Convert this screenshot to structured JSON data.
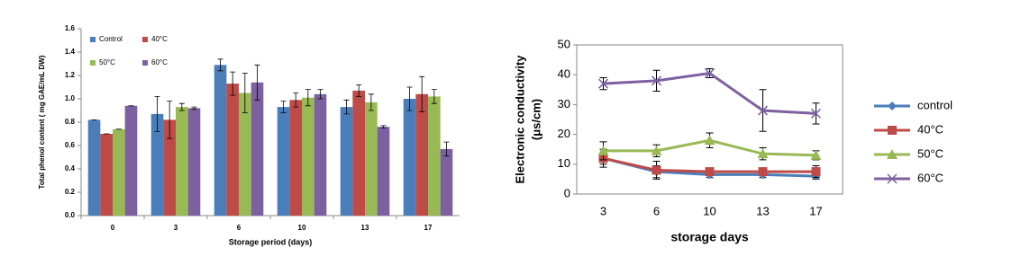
{
  "chart_data": [
    {
      "type": "bar",
      "y_label": "Total phenol content ( mg GAE/mL DW)",
      "x_label": "Storage period (days)",
      "categories": [
        "0",
        "3",
        "6",
        "10",
        "13",
        "17"
      ],
      "ylim": [
        0,
        1.6
      ],
      "yticks": [
        {
          "value": 0,
          "label": "0.0"
        },
        0.2,
        0.4,
        0.6,
        0.8,
        {
          "value": 1,
          "label": "1.0"
        },
        1.2,
        1.4,
        1.6
      ],
      "legend": "upper left",
      "series": [
        {
          "name": "Control",
          "color": "#4a7ebb",
          "values": [
            0.82,
            0.87,
            1.29,
            0.93,
            0.93,
            1.0
          ],
          "errors": [
            0,
            0.15,
            0.05,
            0.05,
            0.06,
            0.1
          ]
        },
        {
          "name": "40°C",
          "color": "#be4b48",
          "values": [
            0.7,
            0.82,
            1.13,
            0.99,
            1.07,
            1.04
          ],
          "errors": [
            0,
            0.16,
            0.1,
            0.06,
            0.05,
            0.15
          ]
        },
        {
          "name": "50°C",
          "color": "#98b954",
          "values": [
            0.74,
            0.93,
            1.05,
            1.01,
            0.97,
            1.02
          ],
          "errors": [
            0,
            0.03,
            0.17,
            0.07,
            0.07,
            0.06
          ]
        },
        {
          "name": "60°C",
          "color": "#7d60a0",
          "values": [
            0.94,
            0.92,
            1.14,
            1.04,
            0.76,
            0.57
          ],
          "errors": [
            0,
            0.01,
            0.15,
            0.04,
            0.01,
            0.06
          ]
        }
      ]
    },
    {
      "type": "line",
      "y_label": [
        "Electronic conductivity",
        "(μs/cm)"
      ],
      "x_label": "storage days",
      "categories": [
        "3",
        "6",
        "10",
        "13",
        "17"
      ],
      "ylim": [
        0,
        50
      ],
      "yticks": [
        0,
        10,
        20,
        30,
        40,
        50
      ],
      "legend": "right",
      "series": [
        {
          "name": "control",
          "color": "#4a7ebb",
          "marker": "diamond",
          "values": [
            12,
            7.5,
            6.5,
            6.5,
            6
          ],
          "errors": [
            2,
            2,
            1,
            1,
            1
          ]
        },
        {
          "name": "40°C",
          "color": "#be4b48",
          "marker": "square",
          "values": [
            12,
            8,
            7.5,
            7.5,
            7.5
          ],
          "errors": [
            3,
            3,
            1,
            1,
            2
          ]
        },
        {
          "name": "50°C",
          "color": "#98b954",
          "marker": "triangle",
          "values": [
            14.5,
            14.5,
            18,
            13.5,
            13
          ],
          "errors": [
            3,
            2,
            2.5,
            2,
            1.5
          ]
        },
        {
          "name": "60°C",
          "color": "#7d60a0",
          "marker": "x",
          "values": [
            37,
            38,
            40.5,
            28,
            27
          ],
          "errors": [
            2,
            3.5,
            1.5,
            7,
            3.5
          ]
        }
      ]
    }
  ]
}
